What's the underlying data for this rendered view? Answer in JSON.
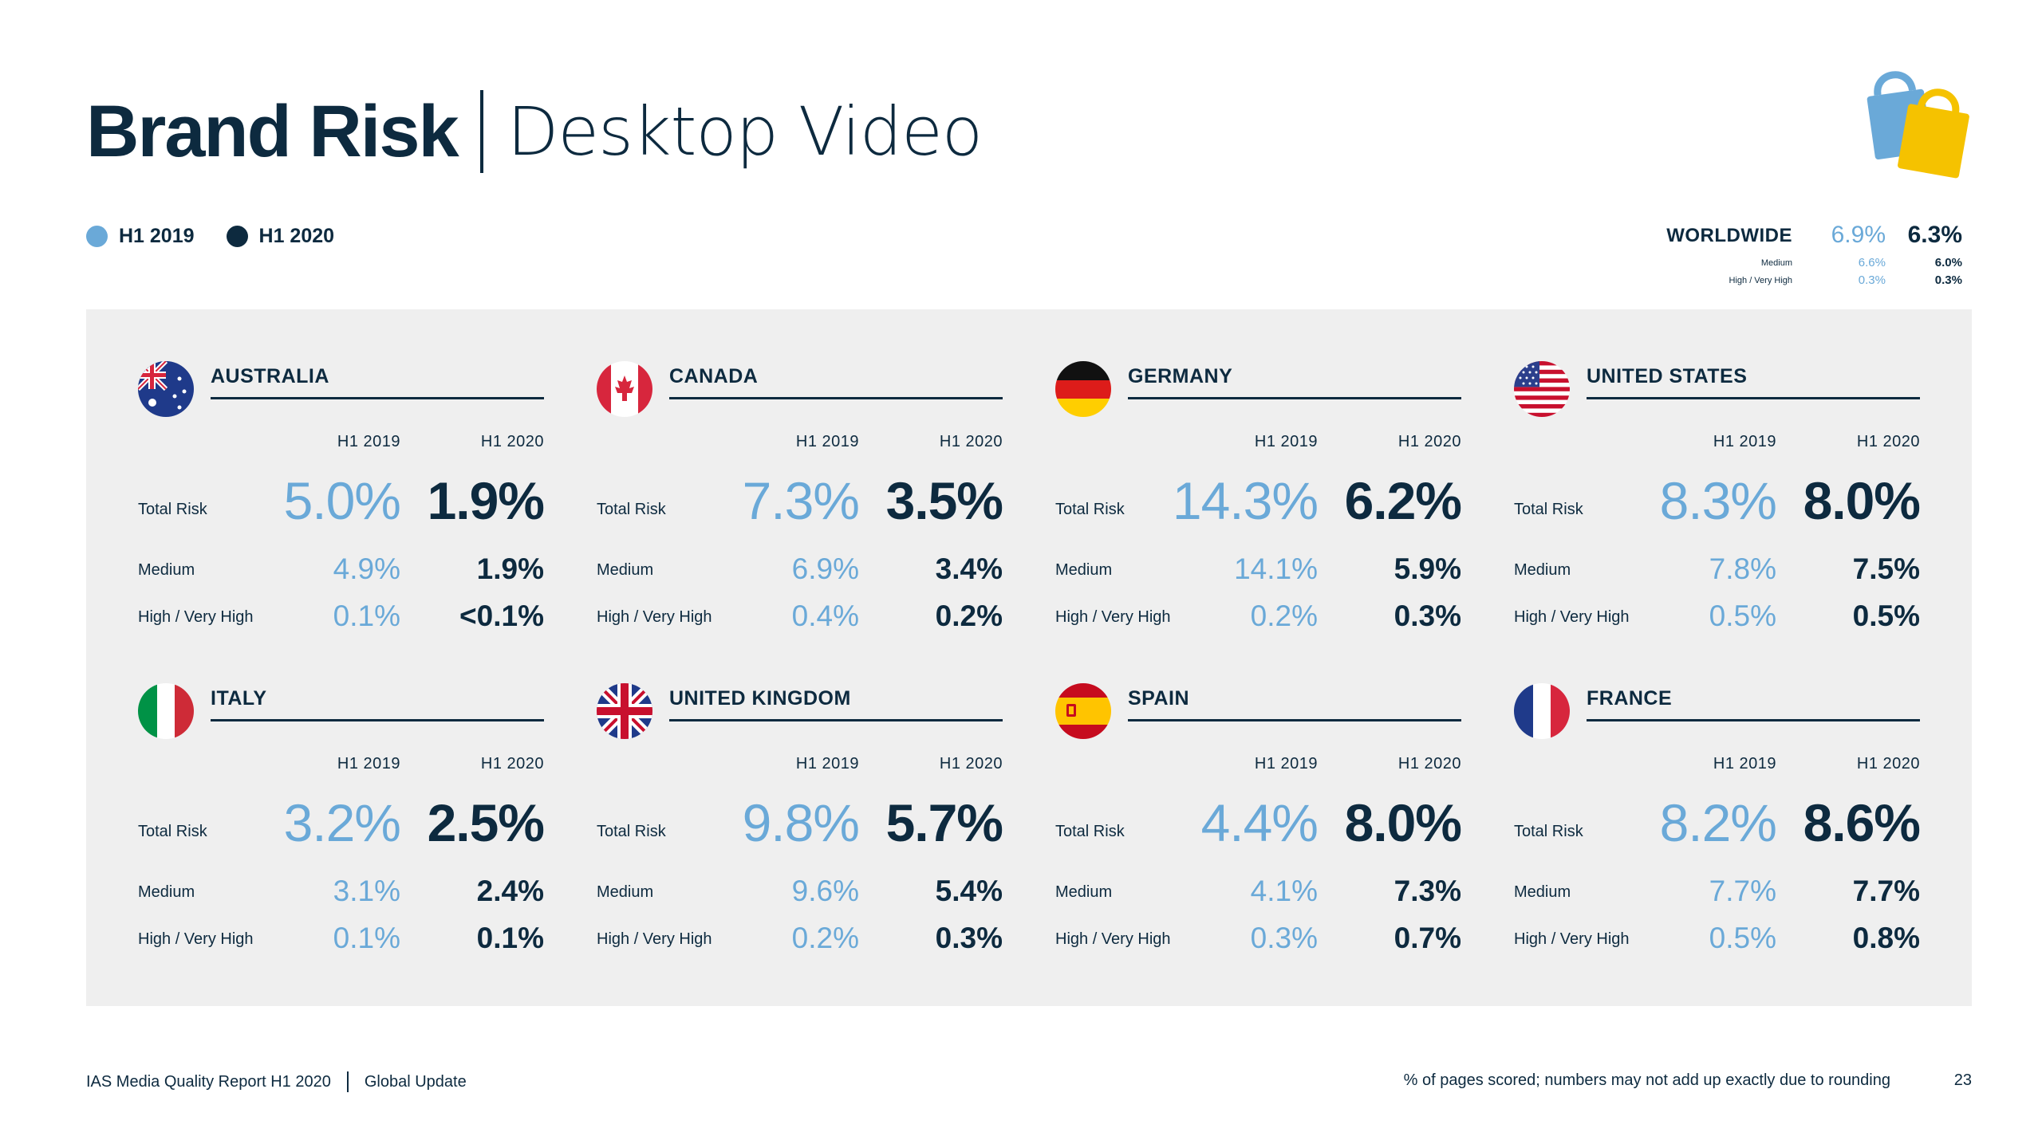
{
  "header": {
    "title_bold": "Brand Risk",
    "title_light": "Desktop Video"
  },
  "legend": {
    "h2019": "H1 2019",
    "h2020": "H1 2020"
  },
  "colors": {
    "h2019": "#6aa9d8",
    "h2020": "#0d2a3f",
    "panel": "#efefef"
  },
  "worldwide": {
    "label": "WORLDWIDE",
    "total_2019": "6.9%",
    "total_2020": "6.3%",
    "medium_label": "Medium",
    "medium_2019": "6.6%",
    "medium_2020": "6.0%",
    "high_label": "High / Very High",
    "high_2019": "0.3%",
    "high_2020": "0.3%"
  },
  "labels": {
    "col_2019": "H1 2019",
    "col_2020": "H1 2020",
    "total": "Total Risk",
    "medium": "Medium",
    "high": "High / Very High"
  },
  "countries": [
    {
      "name": "AUSTRALIA",
      "flag": "australia-flag-icon",
      "total": [
        "5.0%",
        "1.9%"
      ],
      "medium": [
        "4.9%",
        "1.9%"
      ],
      "high": [
        "0.1%",
        "<0.1%"
      ]
    },
    {
      "name": "CANADA",
      "flag": "canada-flag-icon",
      "total": [
        "7.3%",
        "3.5%"
      ],
      "medium": [
        "6.9%",
        "3.4%"
      ],
      "high": [
        "0.4%",
        "0.2%"
      ]
    },
    {
      "name": "GERMANY",
      "flag": "germany-flag-icon",
      "total": [
        "14.3%",
        "6.2%"
      ],
      "medium": [
        "14.1%",
        "5.9%"
      ],
      "high": [
        "0.2%",
        "0.3%"
      ]
    },
    {
      "name": "UNITED STATES",
      "flag": "united-states-flag-icon",
      "total": [
        "8.3%",
        "8.0%"
      ],
      "medium": [
        "7.8%",
        "7.5%"
      ],
      "high": [
        "0.5%",
        "0.5%"
      ]
    },
    {
      "name": "ITALY",
      "flag": "italy-flag-icon",
      "total": [
        "3.2%",
        "2.5%"
      ],
      "medium": [
        "3.1%",
        "2.4%"
      ],
      "high": [
        "0.1%",
        "0.1%"
      ]
    },
    {
      "name": "UNITED KINGDOM",
      "flag": "united-kingdom-flag-icon",
      "total": [
        "9.8%",
        "5.7%"
      ],
      "medium": [
        "9.6%",
        "5.4%"
      ],
      "high": [
        "0.2%",
        "0.3%"
      ]
    },
    {
      "name": "SPAIN",
      "flag": "spain-flag-icon",
      "total": [
        "4.4%",
        "8.0%"
      ],
      "medium": [
        "4.1%",
        "7.3%"
      ],
      "high": [
        "0.3%",
        "0.7%"
      ]
    },
    {
      "name": "FRANCE",
      "flag": "france-flag-icon",
      "total": [
        "8.2%",
        "8.6%"
      ],
      "medium": [
        "7.7%",
        "7.7%"
      ],
      "high": [
        "0.5%",
        "0.8%"
      ]
    }
  ],
  "footer": {
    "report": "IAS Media Quality Report H1 2020",
    "section": "Global Update",
    "note": "% of pages scored; numbers may not add up exactly due to rounding",
    "page": "23"
  }
}
